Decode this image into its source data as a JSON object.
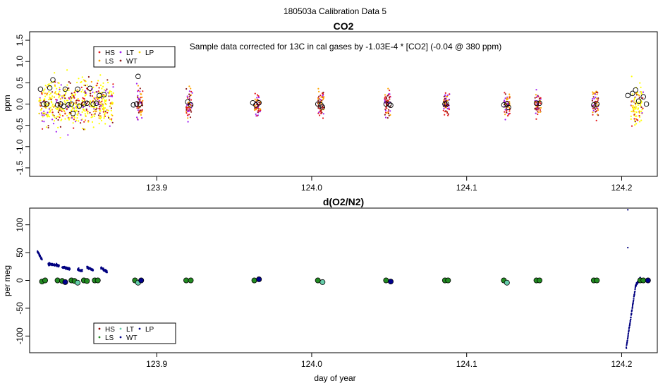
{
  "figure": {
    "title": "180503a   Calibration Data 5",
    "xlabel": "day of year"
  },
  "colors": {
    "HS": "#e41a1c",
    "LS": "#ffa500",
    "LT": "#a020f0",
    "WT": "#8b1a1a",
    "LP": "#ffff00",
    "o2_HS": "#8b0000",
    "o2_LS": "#228b22",
    "o2_LT": "#66cdaa",
    "o2_WT": "#00008b",
    "o2_LP": "#000080"
  },
  "chart_data": [
    {
      "type": "scatter",
      "title": "CO2",
      "annotation": "Sample data corrected for 13C in cal gases by -1.03E-4 * [CO2] (-0.04 @ 380 ppm)",
      "ylabel": "ppm",
      "xlim": [
        123.818,
        124.223
      ],
      "ylim": [
        -1.7,
        1.7
      ],
      "xticks": [
        "123.9",
        "124.0",
        "124.1",
        "124.2"
      ],
      "yticks": [
        "-1.5",
        "-1.0",
        "-0.5",
        "0.0",
        "0.5",
        "1.0",
        "1.5"
      ],
      "legend": {
        "placement": "top-left",
        "entries": [
          "HS",
          "LS",
          "LT",
          "WT",
          "LP"
        ]
      },
      "groups": [
        {
          "x": 123.828,
          "spread": 0.9
        },
        {
          "x": 123.836,
          "spread": 0.9
        },
        {
          "x": 123.844,
          "spread": 1.0
        },
        {
          "x": 123.852,
          "spread": 1.0
        },
        {
          "x": 123.86,
          "spread": 1.0
        },
        {
          "x": 123.868,
          "spread": 0.9
        },
        {
          "x": 123.889,
          "spread": 0.7
        },
        {
          "x": 123.921,
          "spread": 0.6
        },
        {
          "x": 123.965,
          "spread": 0.5
        },
        {
          "x": 124.006,
          "spread": 0.6
        },
        {
          "x": 124.049,
          "spread": 0.7
        },
        {
          "x": 124.087,
          "spread": 0.5
        },
        {
          "x": 124.126,
          "spread": 0.5
        },
        {
          "x": 124.146,
          "spread": 0.5
        },
        {
          "x": 124.183,
          "spread": 0.6
        },
        {
          "x": 124.21,
          "spread": 0.8
        }
      ],
      "means": [
        {
          "x": 123.825,
          "y": 0.35
        },
        {
          "x": 123.827,
          "y": 0.0
        },
        {
          "x": 123.829,
          "y": 0.0
        },
        {
          "x": 123.831,
          "y": 0.38
        },
        {
          "x": 123.833,
          "y": 0.57
        },
        {
          "x": 123.836,
          "y": -0.02
        },
        {
          "x": 123.838,
          "y": 0.0
        },
        {
          "x": 123.84,
          "y": -0.05
        },
        {
          "x": 123.841,
          "y": 0.35
        },
        {
          "x": 123.843,
          "y": -0.02
        },
        {
          "x": 123.845,
          "y": 0.0
        },
        {
          "x": 123.846,
          "y": -0.22
        },
        {
          "x": 123.849,
          "y": 0.35
        },
        {
          "x": 123.85,
          "y": -0.05
        },
        {
          "x": 123.853,
          "y": 0.0
        },
        {
          "x": 123.855,
          "y": 0.02
        },
        {
          "x": 123.857,
          "y": 0.37
        },
        {
          "x": 123.859,
          "y": 0.0
        },
        {
          "x": 123.861,
          "y": 0.02
        },
        {
          "x": 123.863,
          "y": 0.2
        },
        {
          "x": 123.866,
          "y": 0.22
        },
        {
          "x": 123.885,
          "y": -0.02
        },
        {
          "x": 123.887,
          "y": 0.0
        },
        {
          "x": 123.888,
          "y": 0.65
        },
        {
          "x": 123.889,
          "y": 0.0
        },
        {
          "x": 123.92,
          "y": 0.05
        },
        {
          "x": 123.922,
          "y": -0.02
        },
        {
          "x": 123.962,
          "y": 0.03
        },
        {
          "x": 123.964,
          "y": -0.02
        },
        {
          "x": 123.966,
          "y": 0.03
        },
        {
          "x": 124.004,
          "y": 0.0
        },
        {
          "x": 124.006,
          "y": -0.02
        },
        {
          "x": 124.007,
          "y": -0.07
        },
        {
          "x": 124.048,
          "y": 0.0
        },
        {
          "x": 124.05,
          "y": 0.0
        },
        {
          "x": 124.051,
          "y": -0.03
        },
        {
          "x": 124.086,
          "y": 0.0
        },
        {
          "x": 124.087,
          "y": 0.0
        },
        {
          "x": 124.124,
          "y": -0.02
        },
        {
          "x": 124.126,
          "y": 0.0
        },
        {
          "x": 124.127,
          "y": -0.08
        },
        {
          "x": 124.145,
          "y": 0.02
        },
        {
          "x": 124.147,
          "y": 0.02
        },
        {
          "x": 124.182,
          "y": -0.02
        },
        {
          "x": 124.184,
          "y": 0.0
        },
        {
          "x": 124.204,
          "y": 0.2
        },
        {
          "x": 124.207,
          "y": 0.25
        },
        {
          "x": 124.209,
          "y": 0.33
        },
        {
          "x": 124.211,
          "y": 0.07
        },
        {
          "x": 124.214,
          "y": 0.17
        },
        {
          "x": 124.216,
          "y": 0.0
        }
      ]
    },
    {
      "type": "scatter",
      "title": "d(O2/N2)",
      "ylabel": "per meg",
      "xlim": [
        123.818,
        124.223
      ],
      "ylim": [
        -130,
        130
      ],
      "xticks": [
        "123.9",
        "124.0",
        "124.1",
        "124.2"
      ],
      "yticks": [
        "-100",
        "-50",
        "0",
        "50",
        "100"
      ],
      "legend": {
        "placement": "bottom-left",
        "entries": [
          "HS",
          "LS",
          "LT",
          "WT",
          "LP"
        ]
      },
      "lp_segments": [
        {
          "x0": 123.823,
          "x1": 123.826,
          "y0": 52,
          "y1": 38
        },
        {
          "x0": 123.83,
          "x1": 123.837,
          "y0": 30,
          "y1": 26
        },
        {
          "x0": 123.839,
          "x1": 123.844,
          "y0": 24,
          "y1": 20
        },
        {
          "x0": 123.849,
          "x1": 123.852,
          "y0": 20,
          "y1": 17
        },
        {
          "x0": 123.855,
          "x1": 123.859,
          "y0": 24,
          "y1": 18
        },
        {
          "x0": 123.864,
          "x1": 123.868,
          "y0": 23,
          "y1": 15
        },
        {
          "x0": 124.203,
          "x1": 124.209,
          "y0": -120,
          "y1": -10
        },
        {
          "x0": 124.209,
          "x1": 124.212,
          "y0": -10,
          "y1": 5
        }
      ],
      "lp_outliers": [
        {
          "x": 124.204,
          "y": 127
        },
        {
          "x": 124.204,
          "y": 59
        }
      ],
      "means": [
        {
          "x": 123.826,
          "y": -2,
          "c": "LS"
        },
        {
          "x": 123.828,
          "y": 0,
          "c": "LS"
        },
        {
          "x": 123.836,
          "y": 0,
          "c": "LS"
        },
        {
          "x": 123.839,
          "y": -1,
          "c": "LS"
        },
        {
          "x": 123.841,
          "y": -3,
          "c": "WT"
        },
        {
          "x": 123.845,
          "y": 0,
          "c": "LS"
        },
        {
          "x": 123.847,
          "y": -1,
          "c": "LS"
        },
        {
          "x": 123.849,
          "y": -4,
          "c": "LT"
        },
        {
          "x": 123.853,
          "y": 0,
          "c": "LS"
        },
        {
          "x": 123.855,
          "y": -1,
          "c": "LS"
        },
        {
          "x": 123.86,
          "y": 0,
          "c": "LS"
        },
        {
          "x": 123.862,
          "y": 0,
          "c": "LS"
        },
        {
          "x": 123.886,
          "y": 0,
          "c": "LS"
        },
        {
          "x": 123.888,
          "y": -4,
          "c": "LT"
        },
        {
          "x": 123.89,
          "y": 0,
          "c": "WT"
        },
        {
          "x": 123.919,
          "y": 0,
          "c": "LS"
        },
        {
          "x": 123.922,
          "y": 0,
          "c": "LS"
        },
        {
          "x": 123.963,
          "y": 0,
          "c": "LS"
        },
        {
          "x": 123.966,
          "y": 2,
          "c": "WT"
        },
        {
          "x": 124.004,
          "y": 0,
          "c": "LS"
        },
        {
          "x": 124.007,
          "y": -3,
          "c": "LT"
        },
        {
          "x": 124.048,
          "y": 0,
          "c": "LS"
        },
        {
          "x": 124.051,
          "y": -2,
          "c": "WT"
        },
        {
          "x": 124.086,
          "y": 0,
          "c": "LS"
        },
        {
          "x": 124.088,
          "y": 0,
          "c": "LS"
        },
        {
          "x": 124.124,
          "y": 0,
          "c": "LS"
        },
        {
          "x": 124.126,
          "y": -4,
          "c": "LT"
        },
        {
          "x": 124.145,
          "y": 0,
          "c": "LS"
        },
        {
          "x": 124.147,
          "y": 0,
          "c": "LS"
        },
        {
          "x": 124.182,
          "y": 0,
          "c": "LS"
        },
        {
          "x": 124.184,
          "y": 0,
          "c": "LS"
        },
        {
          "x": 124.212,
          "y": 0,
          "c": "LS"
        },
        {
          "x": 124.214,
          "y": 0,
          "c": "LS"
        },
        {
          "x": 124.217,
          "y": 0,
          "c": "WT"
        }
      ]
    }
  ]
}
